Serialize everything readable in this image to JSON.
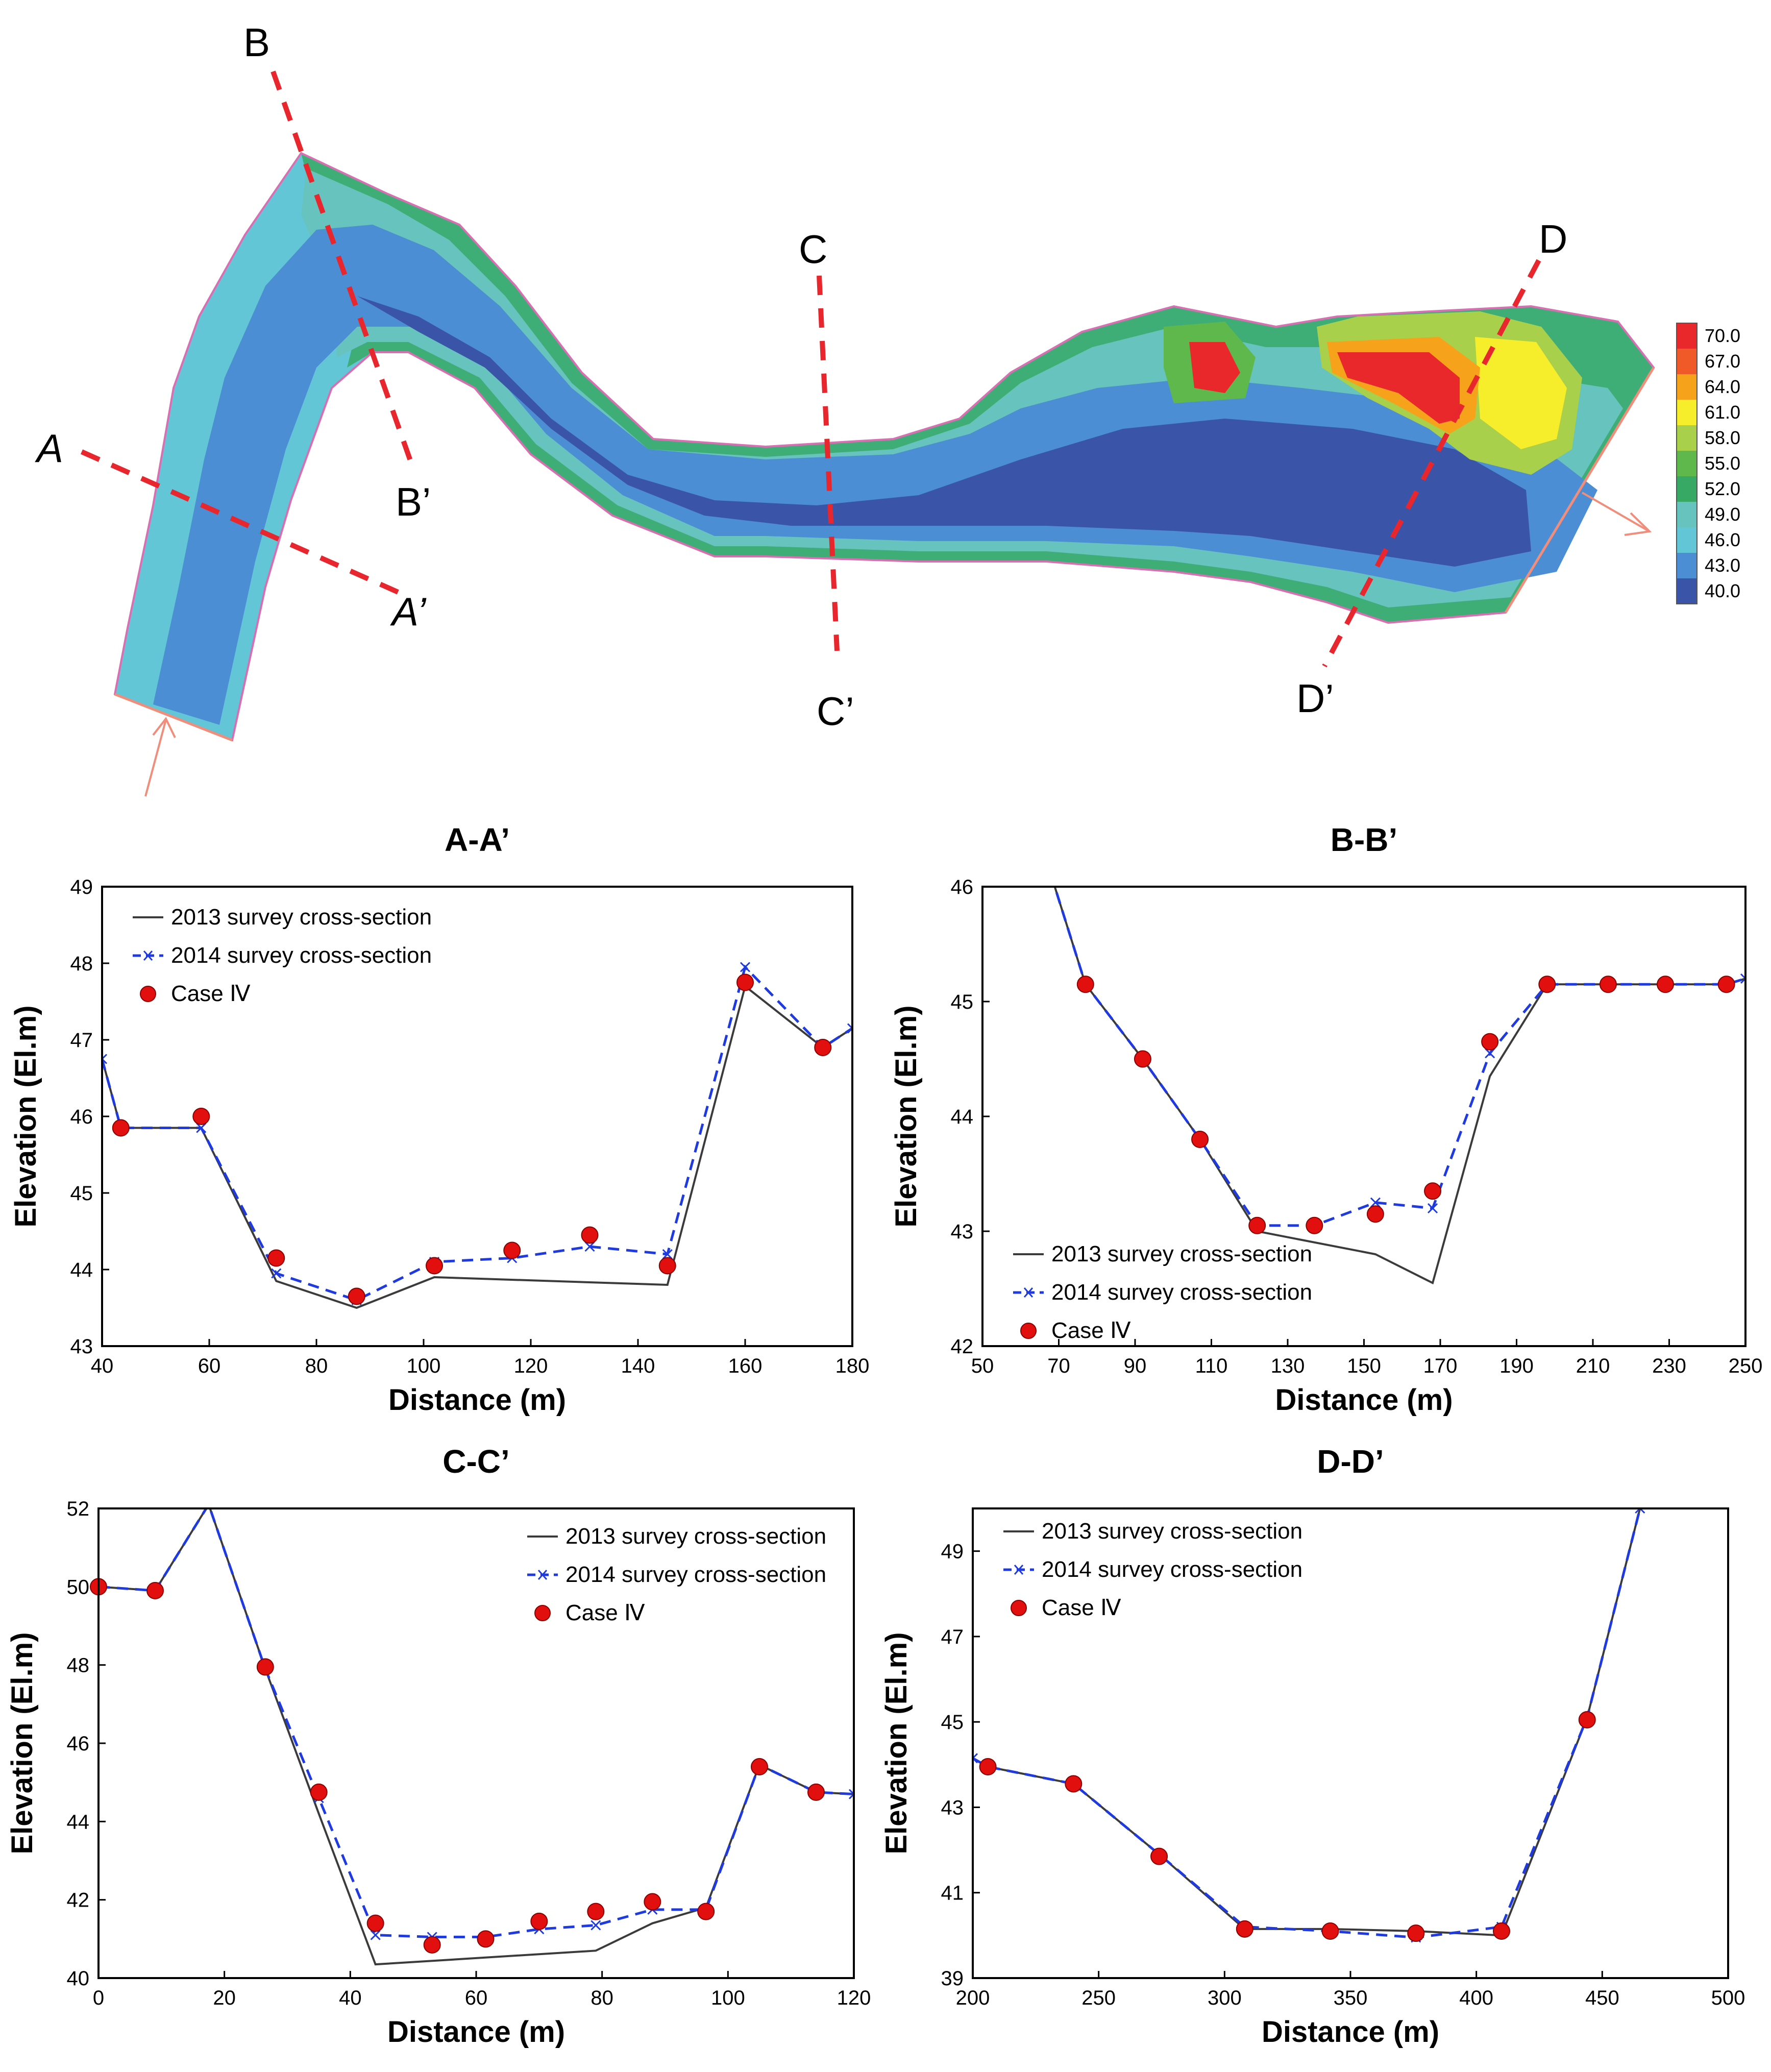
{
  "map": {
    "section_labels": {
      "A": "A",
      "A_prime": "A’",
      "B": "B",
      "B_prime": "B’",
      "C": "C",
      "C_prime": "C’",
      "D": "D",
      "D_prime": "D’"
    },
    "legend_values": [
      "70.0",
      "67.0",
      "64.0",
      "61.0",
      "58.0",
      "55.0",
      "52.0",
      "49.0",
      "46.0",
      "43.0",
      "40.0"
    ],
    "colors": {
      "c70": "#e8282a",
      "c67": "#f05a28",
      "c64": "#f7a21b",
      "c61": "#f6ee2b",
      "c58": "#a8d04a",
      "c55": "#5fb84c",
      "c52": "#38a865",
      "c49": "#67c3bd",
      "c46": "#62c6d6",
      "c43": "#4c8ed3",
      "c40": "#3a55a8",
      "section_line": "#e8262d",
      "boundary": "#d96fb2",
      "flow_arrow": "#f08d7b"
    }
  },
  "series_styles": {
    "s2013": {
      "name": "2013 survey cross-section",
      "color": "#3b3b3b"
    },
    "s2014": {
      "name": "2014 survey cross-section",
      "color": "#1f3be0"
    },
    "case": {
      "name": "Case Ⅳ",
      "color": "#e20f0f"
    }
  },
  "chart_data": [
    {
      "id": "aa",
      "type": "line",
      "title": "A-A’",
      "xlabel": "Distance (m)",
      "ylabel": "Elevation (El.m)",
      "xlim": [
        40,
        180
      ],
      "ylim": [
        43,
        49
      ],
      "xticks": [
        40,
        60,
        80,
        100,
        120,
        140,
        160,
        180
      ],
      "yticks": [
        43,
        44,
        45,
        46,
        47,
        48,
        49
      ],
      "legend_position": "top-left",
      "series": [
        {
          "name": "2013 survey cross-section",
          "x": [
            40,
            43.5,
            58.5,
            72.5,
            87.5,
            102,
            145.5,
            160,
            174.5,
            180
          ],
          "y": [
            46.75,
            45.85,
            45.85,
            43.85,
            43.5,
            43.9,
            43.8,
            47.7,
            46.9,
            47.15
          ]
        },
        {
          "name": "2014 survey cross-section",
          "x": [
            40,
            43.5,
            58.5,
            72.5,
            87.5,
            102,
            116.5,
            131,
            145.5,
            160,
            174.5,
            180
          ],
          "y": [
            46.75,
            45.85,
            45.85,
            43.95,
            43.6,
            44.1,
            44.15,
            44.3,
            44.2,
            47.95,
            46.9,
            47.15
          ]
        },
        {
          "name": "Case Ⅳ",
          "x": [
            43.5,
            58.5,
            72.5,
            87.5,
            102,
            116.5,
            131,
            145.5,
            160,
            174.5
          ],
          "y": [
            45.85,
            46.0,
            44.15,
            43.65,
            44.05,
            44.25,
            44.45,
            44.05,
            47.75,
            46.9
          ]
        }
      ]
    },
    {
      "id": "bb",
      "type": "line",
      "title": "B-B’",
      "xlabel": "Distance (m)",
      "ylabel": "Elevation (El.m)",
      "xlim": [
        50,
        250
      ],
      "ylim": [
        42,
        46
      ],
      "xticks": [
        50,
        70,
        90,
        110,
        130,
        150,
        170,
        190,
        210,
        230,
        250
      ],
      "yticks": [
        42,
        43,
        44,
        45,
        46
      ],
      "legend_position": "bottom-left",
      "series": [
        {
          "name": "2013 survey cross-section",
          "x": [
            68,
            77,
            92,
            107,
            122,
            153,
            168,
            183,
            198,
            214,
            229,
            245,
            250
          ],
          "y": [
            46.1,
            45.15,
            44.5,
            43.8,
            43.0,
            42.8,
            42.55,
            44.35,
            45.15,
            45.15,
            45.15,
            45.15,
            45.2
          ]
        },
        {
          "name": "2014 survey cross-section",
          "x": [
            68,
            77,
            92,
            107,
            122,
            137,
            153,
            168,
            183,
            198,
            214,
            229,
            245,
            250
          ],
          "y": [
            46.1,
            45.15,
            44.5,
            43.8,
            43.05,
            43.05,
            43.25,
            43.2,
            44.55,
            45.15,
            45.15,
            45.15,
            45.15,
            45.2
          ]
        },
        {
          "name": "Case Ⅳ",
          "x": [
            77,
            92,
            107,
            122,
            137,
            153,
            168,
            183,
            198,
            214,
            229,
            245
          ],
          "y": [
            45.15,
            44.5,
            43.8,
            43.05,
            43.05,
            43.15,
            43.35,
            44.65,
            45.15,
            45.15,
            45.15,
            45.15
          ]
        }
      ]
    },
    {
      "id": "cc",
      "type": "line",
      "title": "C-C’",
      "xlabel": "Distance (m)",
      "ylabel": "Elevation (El.m)",
      "xlim": [
        0,
        120
      ],
      "ylim": [
        40,
        52
      ],
      "xticks": [
        0,
        20,
        40,
        60,
        80,
        100,
        120
      ],
      "yticks": [
        40,
        42,
        44,
        46,
        48,
        50,
        52
      ],
      "legend_position": "top-right",
      "series": [
        {
          "name": "2013 survey cross-section",
          "x": [
            0,
            9,
            17.5,
            26.5,
            35,
            44,
            79,
            88,
            96.5,
            105,
            114,
            120
          ],
          "y": [
            50,
            49.9,
            52.1,
            47.9,
            44.2,
            40.35,
            40.7,
            41.4,
            41.8,
            45.45,
            44.75,
            44.7
          ]
        },
        {
          "name": "2014 survey cross-section",
          "x": [
            0,
            9,
            17.5,
            26.5,
            35,
            44,
            53,
            61.5,
            70,
            79,
            88,
            96.5,
            105,
            114,
            120
          ],
          "y": [
            50,
            49.9,
            52.1,
            47.9,
            44.6,
            41.1,
            41.05,
            41.05,
            41.25,
            41.35,
            41.75,
            41.75,
            45.45,
            44.75,
            44.7
          ]
        },
        {
          "name": "Case Ⅳ",
          "x": [
            0,
            9,
            26.5,
            35,
            44,
            53,
            61.5,
            70,
            79,
            88,
            96.5,
            105,
            114
          ],
          "y": [
            50,
            49.9,
            47.95,
            44.75,
            41.4,
            40.85,
            41.0,
            41.45,
            41.7,
            41.95,
            41.7,
            45.4,
            44.75
          ]
        }
      ]
    },
    {
      "id": "dd",
      "type": "line",
      "title": "D-D’",
      "xlabel": "Distance (m)",
      "ylabel": "Elevation (El.m)",
      "xlim": [
        200,
        500
      ],
      "ylim": [
        39,
        50
      ],
      "xticks": [
        200,
        250,
        300,
        350,
        400,
        450,
        500
      ],
      "yticks": [
        39,
        41,
        43,
        45,
        47,
        49
      ],
      "legend_position": "top-left",
      "series": [
        {
          "name": "2013 survey cross-section",
          "x": [
            200,
            206,
            240,
            274,
            308,
            342,
            376,
            410,
            444,
            465
          ],
          "y": [
            44.15,
            43.95,
            43.55,
            41.9,
            40.15,
            40.15,
            40.1,
            40.0,
            45.1,
            50.0
          ]
        },
        {
          "name": "2014 survey cross-section",
          "x": [
            200,
            206,
            240,
            274,
            308,
            342,
            376,
            410,
            444,
            465
          ],
          "y": [
            44.15,
            43.95,
            43.55,
            41.9,
            40.2,
            40.1,
            39.95,
            40.2,
            45.1,
            50.0
          ]
        },
        {
          "name": "Case Ⅳ",
          "x": [
            206,
            240,
            274,
            308,
            342,
            376,
            410,
            444
          ],
          "y": [
            43.95,
            43.55,
            41.85,
            40.15,
            40.1,
            40.05,
            40.1,
            45.05
          ]
        }
      ]
    }
  ]
}
